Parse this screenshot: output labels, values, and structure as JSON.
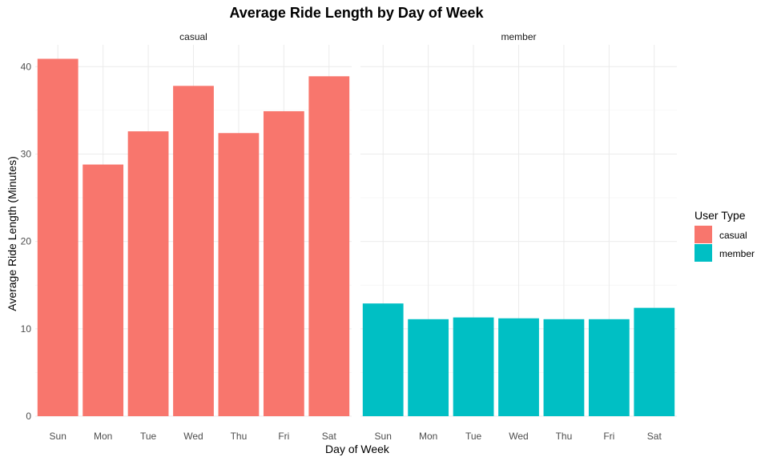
{
  "chart_data": {
    "type": "bar",
    "title": "Average Ride Length by Day of Week",
    "xlabel": "Day of Week",
    "ylabel": "Average Ride Length (Minutes)",
    "categories": [
      "Sun",
      "Mon",
      "Tue",
      "Wed",
      "Thu",
      "Fri",
      "Sat"
    ],
    "facets": [
      "casual",
      "member"
    ],
    "series": [
      {
        "name": "casual",
        "facet": "casual",
        "color": "#F8766D",
        "values": [
          40.9,
          28.8,
          32.6,
          37.8,
          32.4,
          34.9,
          38.9
        ]
      },
      {
        "name": "member",
        "facet": "member",
        "color": "#00BFC4",
        "values": [
          12.9,
          11.1,
          11.3,
          11.2,
          11.1,
          11.1,
          12.4
        ]
      }
    ],
    "yticks": [
      0,
      10,
      20,
      30,
      40
    ],
    "ylim": [
      0,
      42.5
    ],
    "grid": true,
    "legend": {
      "title": "User Type",
      "position": "right",
      "items": [
        {
          "label": "casual",
          "color": "#F8766D"
        },
        {
          "label": "member",
          "color": "#00BFC4"
        }
      ]
    }
  }
}
